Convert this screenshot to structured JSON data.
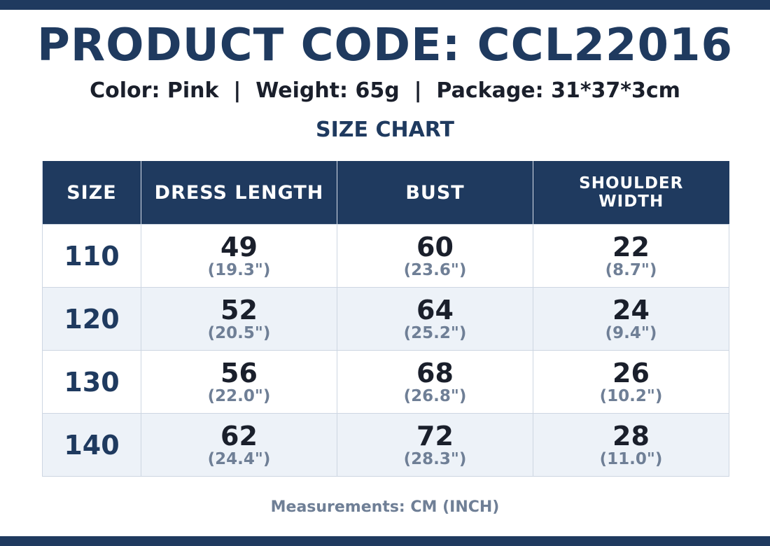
{
  "header": {
    "title": "PRODUCT CODE: CCL22016",
    "subtitle": "Color: Pink  |  Weight: 65g  |  Package: 31*37*3cm",
    "section": "SIZE CHART"
  },
  "table": {
    "columns": [
      "SIZE",
      "DRESS LENGTH",
      "BUST",
      "SHOULDER WIDTH"
    ],
    "rows": [
      {
        "size": 110,
        "cells": [
          {
            "cm": 49,
            "inch": "(19.3\")"
          },
          {
            "cm": 60,
            "inch": "(23.6\")"
          },
          {
            "cm": 22,
            "inch": "(8.7\")"
          }
        ]
      },
      {
        "size": 120,
        "cells": [
          {
            "cm": 52,
            "inch": "(20.5\")"
          },
          {
            "cm": 64,
            "inch": "(25.2\")"
          },
          {
            "cm": 24,
            "inch": "(9.4\")"
          }
        ]
      },
      {
        "size": 130,
        "cells": [
          {
            "cm": 56,
            "inch": "(22.0\")"
          },
          {
            "cm": 68,
            "inch": "(26.8\")"
          },
          {
            "cm": 26,
            "inch": "(10.2\")"
          }
        ]
      },
      {
        "size": 140,
        "cells": [
          {
            "cm": 62,
            "inch": "(24.4\")"
          },
          {
            "cm": 72,
            "inch": "(28.3\")"
          },
          {
            "cm": 28,
            "inch": "(11.0\")"
          }
        ]
      }
    ]
  },
  "footer": {
    "note": "Measurements: CM (INCH)"
  }
}
